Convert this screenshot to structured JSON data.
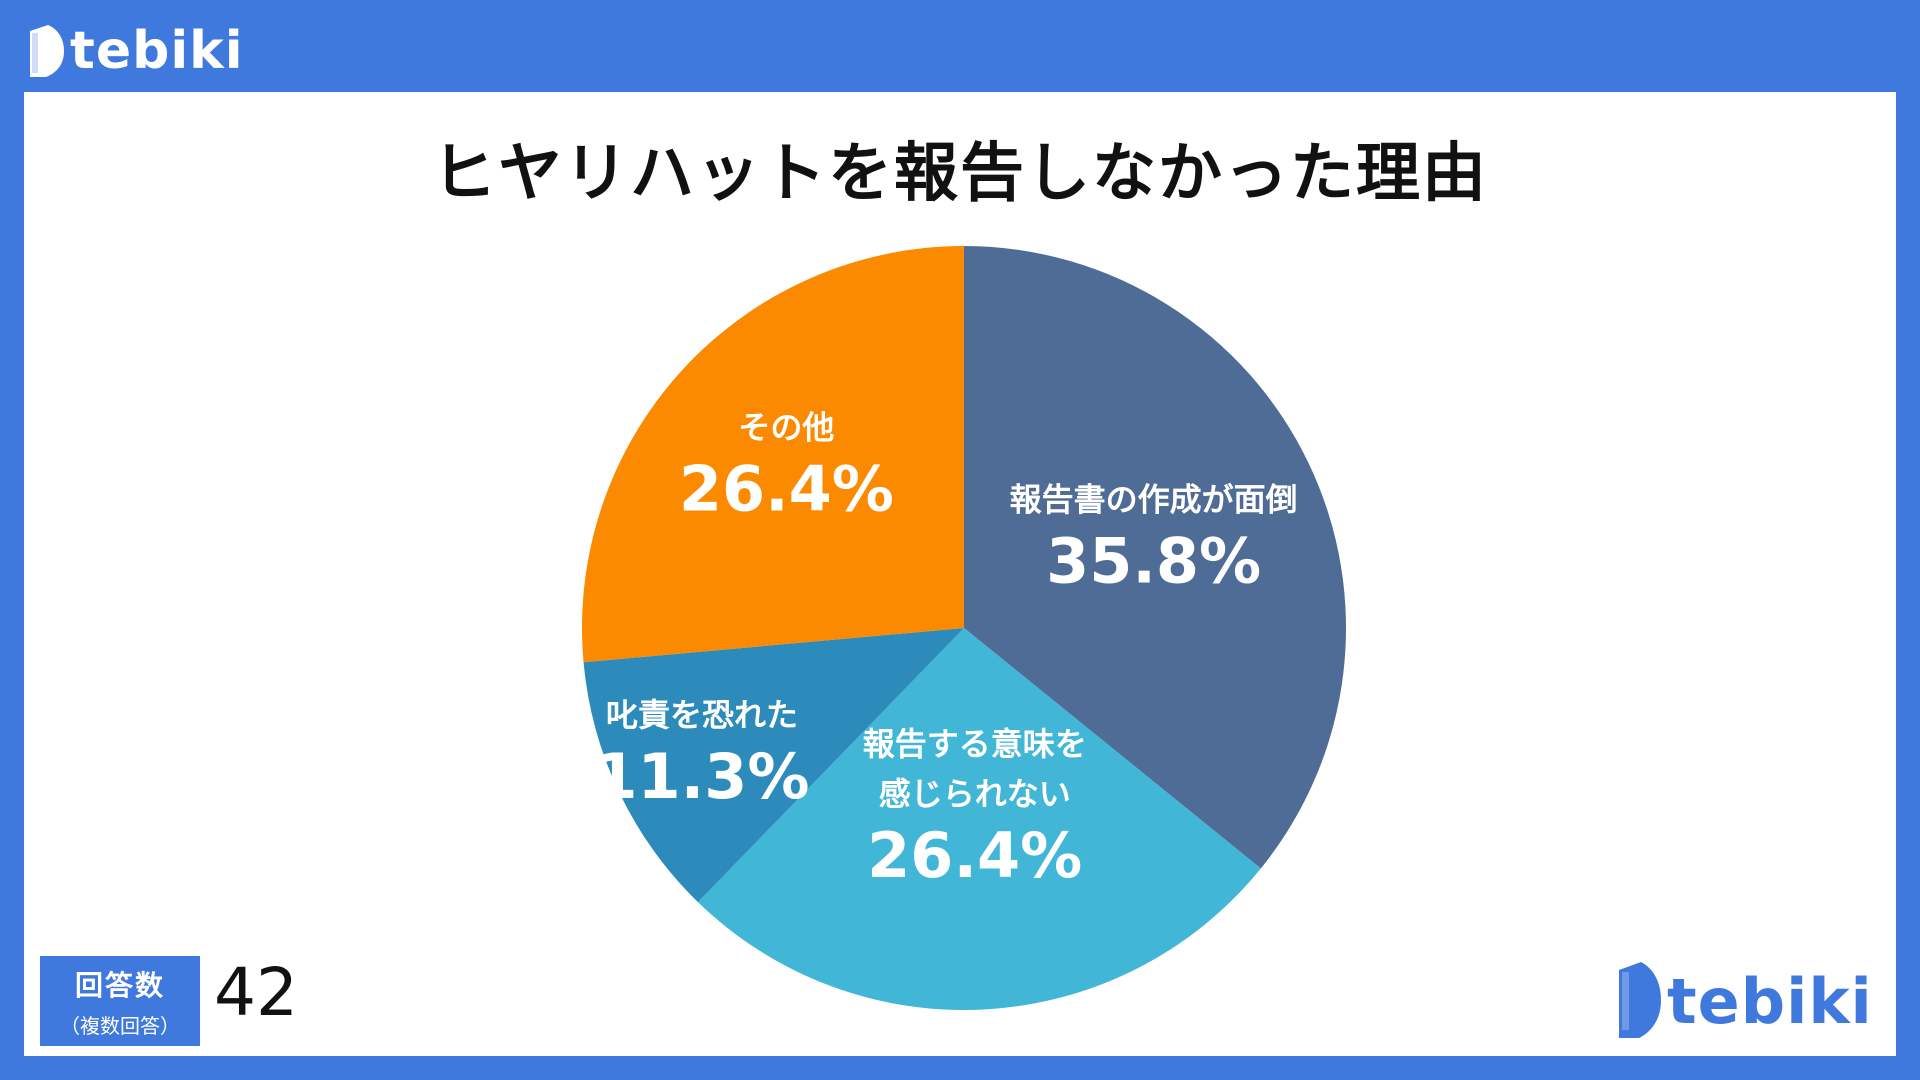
{
  "brand": {
    "name": "tebiki",
    "color": "#4079dd",
    "logo_icon": "tebiki-logo-icon"
  },
  "respondents": {
    "label": "回答数",
    "note": "（複数回答）",
    "value": "42"
  },
  "chart_data": {
    "type": "pie",
    "title": "ヒヤリハットを報告しなかった理由",
    "slices": [
      {
        "label_lines": [
          "報告書の作成が面倒"
        ],
        "value": 35.8,
        "display": "35.8%",
        "color": "#4f6c97"
      },
      {
        "label_lines": [
          "報告する意味を",
          "感じられない"
        ],
        "value": 26.4,
        "display": "26.4%",
        "color": "#41b6d6"
      },
      {
        "label_lines": [
          "叱責を恐れた"
        ],
        "value": 11.3,
        "display": "11.3%",
        "color": "#2c8bbb"
      },
      {
        "label_lines": [
          "その他"
        ],
        "value": 26.4,
        "display": "26.4%",
        "color": "#fb8a00"
      }
    ],
    "start": "12 o'clock",
    "direction": "clockwise",
    "legend": "none"
  }
}
